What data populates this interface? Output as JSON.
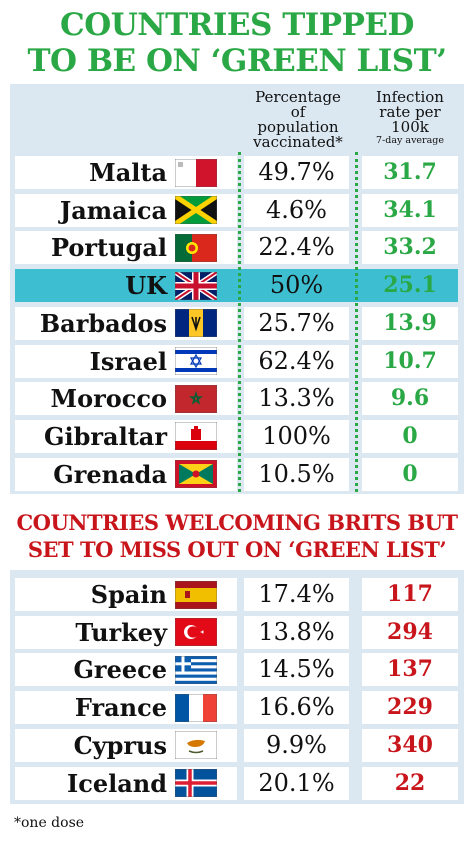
{
  "title": {
    "line1": "COUNTRIES TIPPED",
    "line2": "TO BE ON ‘GREEN LIST’"
  },
  "headers": {
    "vaccinated": [
      "Percentage",
      "of",
      "population",
      "vaccinated*"
    ],
    "infection": [
      "Infection",
      "rate per",
      "100k"
    ],
    "infection_note": "7-day average"
  },
  "green_list": [
    {
      "country": "Malta",
      "vaccinated": "49.7%",
      "infection": "31.7",
      "flag": "malta-flag"
    },
    {
      "country": "Jamaica",
      "vaccinated": "4.6%",
      "infection": "34.1",
      "flag": "jamaica-flag"
    },
    {
      "country": "Portugal",
      "vaccinated": "22.4%",
      "infection": "33.2",
      "flag": "portugal-flag"
    },
    {
      "country": "UK",
      "vaccinated": "50%",
      "infection": "25.1",
      "flag": "uk-flag",
      "highlight": true
    },
    {
      "country": "Barbados",
      "vaccinated": "25.7%",
      "infection": "13.9",
      "flag": "barbados-flag"
    },
    {
      "country": "Israel",
      "vaccinated": "62.4%",
      "infection": "10.7",
      "flag": "israel-flag"
    },
    {
      "country": "Morocco",
      "vaccinated": "13.3%",
      "infection": "9.6",
      "flag": "morocco-flag"
    },
    {
      "country": "Gibraltar",
      "vaccinated": "100%",
      "infection": "0",
      "flag": "gibraltar-flag"
    },
    {
      "country": "Grenada",
      "vaccinated": "10.5%",
      "infection": "0",
      "flag": "grenada-flag"
    }
  ],
  "subtitle": {
    "line1": "COUNTRIES WELCOMING BRITS BUT",
    "line2": "SET TO MISS OUT ON ‘GREEN LIST’"
  },
  "miss_list": [
    {
      "country": "Spain",
      "vaccinated": "17.4%",
      "infection": "117",
      "flag": "spain-flag"
    },
    {
      "country": "Turkey",
      "vaccinated": "13.8%",
      "infection": "294",
      "flag": "turkey-flag"
    },
    {
      "country": "Greece",
      "vaccinated": "14.5%",
      "infection": "137",
      "flag": "greece-flag"
    },
    {
      "country": "France",
      "vaccinated": "16.6%",
      "infection": "229",
      "flag": "france-flag"
    },
    {
      "country": "Cyprus",
      "vaccinated": "9.9%",
      "infection": "340",
      "flag": "cyprus-flag"
    },
    {
      "country": "Iceland",
      "vaccinated": "20.1%",
      "infection": "22",
      "flag": "iceland-flag"
    }
  ],
  "footnote": "*one dose",
  "colors": {
    "green": "#2aa845",
    "red": "#c8151b",
    "panel": "#dbe7f1",
    "highlight": "#3ebfd1"
  }
}
